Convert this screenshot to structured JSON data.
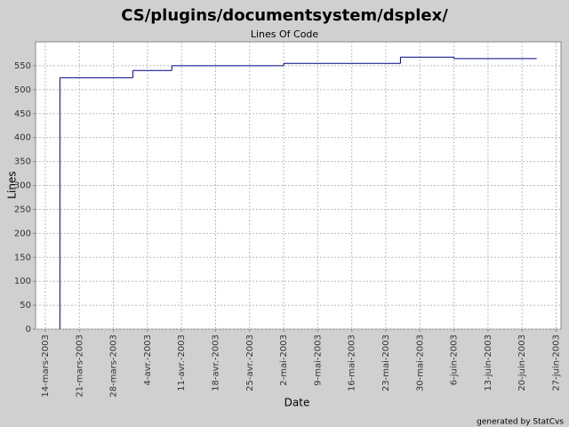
{
  "chart_data": {
    "type": "step-line",
    "title": "CS/plugins/documentsystem/dsplex/",
    "subtitle": "Lines Of Code",
    "x_label": "Date",
    "y_label": "Lines",
    "footer": "generated by StatCvs",
    "x": [
      "2003-03-17",
      "2003-04-01",
      "2003-04-09",
      "2003-05-02",
      "2003-05-26",
      "2003-06-06",
      "2003-06-23"
    ],
    "series": [
      {
        "name": "Lines",
        "color": "#000080",
        "values": [
          525,
          540,
          550,
          555,
          568,
          565,
          565
        ]
      }
    ],
    "xlim": [
      "2003-03-12",
      "2003-06-28"
    ],
    "xticks": [
      {
        "value": "2003-03-14",
        "label": "14-mars-2003"
      },
      {
        "value": "2003-03-21",
        "label": "21-mars-2003"
      },
      {
        "value": "2003-03-28",
        "label": "28-mars-2003"
      },
      {
        "value": "2003-04-04",
        "label": "4-avr.-2003"
      },
      {
        "value": "2003-04-11",
        "label": "11-avr.-2003"
      },
      {
        "value": "2003-04-18",
        "label": "18-avr.-2003"
      },
      {
        "value": "2003-04-25",
        "label": "25-avr.-2003"
      },
      {
        "value": "2003-05-02",
        "label": "2-mai-2003"
      },
      {
        "value": "2003-05-09",
        "label": "9-mai-2003"
      },
      {
        "value": "2003-05-16",
        "label": "16-mai-2003"
      },
      {
        "value": "2003-05-23",
        "label": "23-mai-2003"
      },
      {
        "value": "2003-05-30",
        "label": "30-mai-2003"
      },
      {
        "value": "2003-06-06",
        "label": "6-juin-2003"
      },
      {
        "value": "2003-06-13",
        "label": "13-juin-2003"
      },
      {
        "value": "2003-06-20",
        "label": "20-juin-2003"
      },
      {
        "value": "2003-06-27",
        "label": "27-juin-2003"
      }
    ],
    "ylim": [
      0,
      600
    ],
    "yticks": [
      0,
      50,
      100,
      150,
      200,
      250,
      300,
      350,
      400,
      450,
      500,
      550
    ],
    "grid": true
  }
}
